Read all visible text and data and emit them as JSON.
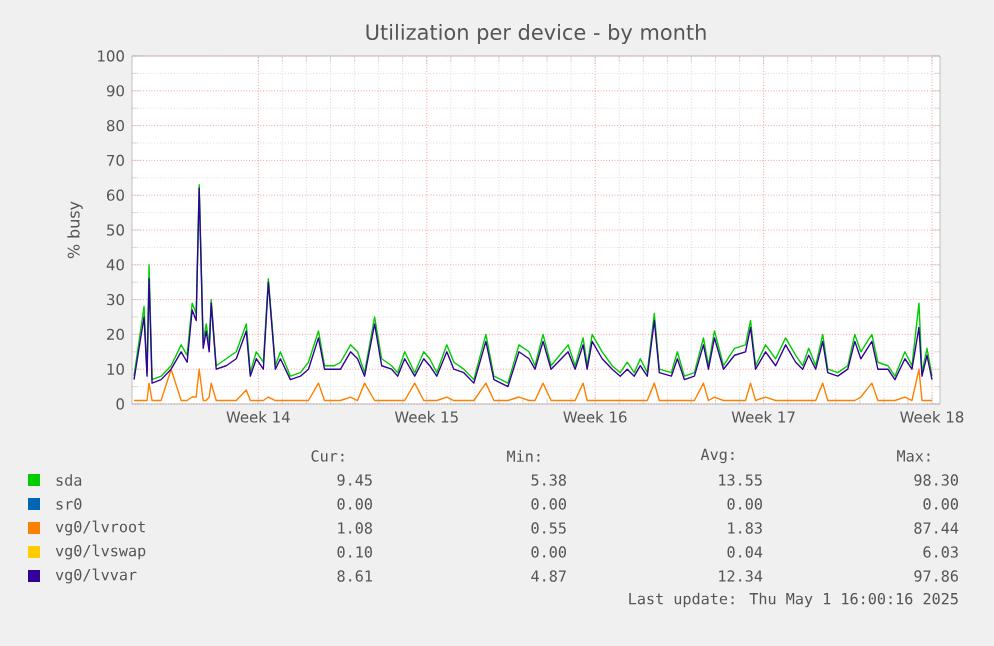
{
  "chart_data": {
    "type": "line",
    "title": "Utilization per device - by month",
    "ylabel": "% busy",
    "x": [
      "2025-03-25T20:00",
      "2025-03-26T06:00",
      "2025-03-26T09:00",
      "2025-03-26T11:00",
      "2025-03-26T14:00",
      "2025-03-26T23:00",
      "2025-03-27T09:00",
      "2025-03-27T19:00",
      "2025-03-28T01:00",
      "2025-03-28T06:00",
      "2025-03-28T10:00",
      "2025-03-28T13:00",
      "2025-03-28T17:00",
      "2025-03-28T20:00",
      "2025-03-28T23:00",
      "2025-03-29T01:00",
      "2025-03-29T06:00",
      "2025-03-29T16:00",
      "2025-03-30T02:00",
      "2025-03-30T12:00",
      "2025-03-30T16:00",
      "2025-03-30T22:00",
      "2025-03-31T05:00",
      "2025-03-31T10:00",
      "2025-03-31T17:00",
      "2025-03-31T22:00",
      "2025-04-01T08:00",
      "2025-04-01T18:00",
      "2025-04-02T02:00",
      "2025-04-02T12:00",
      "2025-04-02T18:00",
      "2025-04-03T04:00",
      "2025-04-03T10:00",
      "2025-04-03T20:00",
      "2025-04-04T03:00",
      "2025-04-04T10:00",
      "2025-04-04T20:00",
      "2025-04-05T03:00",
      "2025-04-05T13:00",
      "2025-04-05T19:00",
      "2025-04-06T02:00",
      "2025-04-06T12:00",
      "2025-04-06T21:00",
      "2025-04-07T03:00",
      "2025-04-07T10:00",
      "2025-04-07T20:00",
      "2025-04-08T03:00",
      "2025-04-08T13:00",
      "2025-04-08T23:00",
      "2025-04-09T11:00",
      "2025-04-09T19:00",
      "2025-04-10T09:00",
      "2025-04-10T20:00",
      "2025-04-11T06:00",
      "2025-04-11T12:00",
      "2025-04-11T20:00",
      "2025-04-12T04:00",
      "2025-04-12T21:00",
      "2025-04-13T04:00",
      "2025-04-13T12:00",
      "2025-04-13T16:00",
      "2025-04-13T21:00",
      "2025-04-14T07:00",
      "2025-04-14T17:00",
      "2025-04-15T01:00",
      "2025-04-15T08:00",
      "2025-04-15T15:00",
      "2025-04-15T21:00",
      "2025-04-16T04:00",
      "2025-04-16T11:00",
      "2025-04-16T16:00",
      "2025-04-17T04:00",
      "2025-04-17T10:00",
      "2025-04-17T17:00",
      "2025-04-18T03:00",
      "2025-04-18T12:00",
      "2025-04-18T17:00",
      "2025-04-18T23:00",
      "2025-04-19T08:00",
      "2025-04-19T19:00",
      "2025-04-20T06:00",
      "2025-04-20T11:00",
      "2025-04-20T16:00",
      "2025-04-21T02:00",
      "2025-04-21T12:00",
      "2025-04-21T22:00",
      "2025-04-22T08:00",
      "2025-04-22T15:00",
      "2025-04-22T21:00",
      "2025-04-23T04:00",
      "2025-04-23T11:00",
      "2025-04-23T16:00",
      "2025-04-24T02:00",
      "2025-04-24T12:00",
      "2025-04-24T19:00",
      "2025-04-25T01:00",
      "2025-04-25T12:00",
      "2025-04-25T18:00",
      "2025-04-26T04:00",
      "2025-04-26T11:00",
      "2025-04-26T21:00",
      "2025-04-27T04:00",
      "2025-04-27T11:00",
      "2025-04-27T14:00",
      "2025-04-27T19:00",
      "2025-04-28T00:00"
    ],
    "series": [
      {
        "name": "sda",
        "color": "#00cc00",
        "values": [
          8,
          28,
          9,
          40,
          7,
          8,
          11,
          17,
          14,
          29,
          26,
          63,
          18,
          23,
          17,
          30,
          11,
          13,
          15,
          23,
          9,
          15,
          12,
          36,
          11,
          15,
          8,
          9,
          12,
          21,
          11,
          11,
          12,
          17,
          15,
          9,
          25,
          13,
          11,
          9,
          15,
          9,
          15,
          13,
          9,
          17,
          12,
          10,
          7,
          20,
          8,
          6,
          17,
          15,
          11,
          20,
          11,
          17,
          11,
          19,
          11,
          20,
          15,
          11,
          9,
          12,
          9,
          13,
          9,
          26,
          10,
          9,
          15,
          8,
          9,
          19,
          11,
          21,
          11,
          16,
          17,
          24,
          11,
          17,
          13,
          19,
          14,
          11,
          16,
          11,
          20,
          10,
          9,
          11,
          20,
          15,
          20,
          12,
          11,
          8,
          15,
          11,
          29,
          9,
          16,
          8
        ]
      },
      {
        "name": "sr0",
        "color": "#0066b3",
        "values": [
          null,
          null,
          null,
          null,
          null,
          null,
          null,
          null,
          null,
          null,
          null,
          null,
          null,
          null,
          null,
          null,
          null,
          null,
          null,
          null,
          null,
          null,
          null,
          null,
          null,
          null,
          null,
          null,
          null,
          null,
          null,
          null,
          null,
          null,
          null,
          null,
          null,
          null,
          null,
          null,
          null,
          null,
          null,
          null,
          null,
          null,
          null,
          null,
          null,
          null,
          null,
          null,
          null,
          null,
          null,
          null,
          null,
          null,
          null,
          null,
          null,
          null,
          null,
          null,
          null,
          null,
          null,
          null,
          null,
          null,
          null,
          null,
          null,
          null,
          null,
          null,
          null,
          null,
          null,
          null,
          null,
          null,
          null,
          null,
          null,
          null,
          null,
          null,
          null,
          null,
          null,
          null,
          null,
          null,
          null,
          null,
          null,
          null,
          null,
          null,
          null,
          null,
          null,
          null,
          null,
          null
        ]
      },
      {
        "name": "vg0/lvroot",
        "color": "#ff8000",
        "values": [
          1,
          1,
          1,
          6,
          1,
          1,
          10,
          1,
          1,
          2,
          2,
          10,
          1,
          1,
          2,
          6,
          1,
          1,
          1,
          4,
          1,
          1,
          1,
          2,
          1,
          1,
          1,
          1,
          1,
          6,
          1,
          1,
          1,
          2,
          1,
          6,
          1,
          1,
          1,
          1,
          1,
          6,
          1,
          1,
          1,
          2,
          1,
          1,
          1,
          6,
          1,
          1,
          2,
          1,
          1,
          6,
          1,
          1,
          1,
          6,
          1,
          1,
          1,
          1,
          1,
          1,
          1,
          1,
          1,
          6,
          1,
          1,
          1,
          1,
          1,
          6,
          1,
          2,
          1,
          1,
          1,
          6,
          1,
          2,
          1,
          1,
          1,
          1,
          1,
          1,
          6,
          1,
          1,
          1,
          1,
          2,
          6,
          1,
          1,
          1,
          2,
          1,
          10,
          1,
          1,
          1
        ]
      },
      {
        "name": "vg0/lvswap",
        "color": "#ffcc00",
        "values": [
          null,
          null,
          null,
          null,
          null,
          null,
          null,
          null,
          null,
          null,
          null,
          null,
          null,
          null,
          null,
          null,
          null,
          null,
          null,
          null,
          null,
          null,
          null,
          null,
          null,
          null,
          null,
          null,
          null,
          null,
          null,
          null,
          null,
          null,
          null,
          null,
          null,
          null,
          null,
          null,
          null,
          null,
          null,
          null,
          null,
          null,
          null,
          null,
          null,
          null,
          null,
          null,
          null,
          null,
          null,
          null,
          null,
          null,
          null,
          null,
          null,
          null,
          null,
          null,
          null,
          null,
          null,
          null,
          null,
          null,
          null,
          null,
          null,
          null,
          null,
          null,
          null,
          null,
          null,
          null,
          null,
          null,
          null,
          null,
          null,
          null,
          null,
          null,
          null,
          null,
          null,
          null,
          null,
          null,
          null,
          null,
          null,
          null,
          null,
          null,
          null,
          null,
          null,
          null,
          null,
          null
        ]
      },
      {
        "name": "vg0/lvvar",
        "color": "#330099",
        "values": [
          7,
          25,
          8,
          36,
          6,
          7,
          10,
          15,
          12,
          27,
          24,
          62,
          16,
          21,
          15,
          29,
          10,
          11,
          13,
          21,
          8,
          13,
          10,
          35,
          10,
          13,
          7,
          8,
          10,
          19,
          10,
          10,
          10,
          15,
          13,
          8,
          23,
          11,
          10,
          8,
          13,
          8,
          13,
          11,
          8,
          15,
          10,
          9,
          6,
          18,
          7,
          5,
          15,
          13,
          10,
          18,
          10,
          15,
          10,
          17,
          10,
          18,
          13,
          10,
          8,
          10,
          8,
          11,
          8,
          24,
          9,
          8,
          13,
          7,
          8,
          17,
          10,
          19,
          10,
          14,
          15,
          22,
          10,
          15,
          11,
          17,
          12,
          10,
          14,
          10,
          18,
          9,
          8,
          10,
          18,
          13,
          18,
          10,
          10,
          7,
          13,
          10,
          22,
          8,
          14,
          7
        ]
      }
    ],
    "xlim": [
      "2025-03-25T18:00",
      "2025-04-28T08:00"
    ],
    "ylim": [
      0,
      100
    ],
    "xticks": [
      {
        "value": "2025-03-31",
        "label": "Week 14"
      },
      {
        "value": "2025-04-07",
        "label": "Week 15"
      },
      {
        "value": "2025-04-14",
        "label": "Week 16"
      },
      {
        "value": "2025-04-21",
        "label": "Week 17"
      },
      {
        "value": "2025-04-28",
        "label": "Week 18"
      }
    ],
    "yticks": [
      0,
      10,
      20,
      30,
      40,
      50,
      60,
      70,
      80,
      90,
      100
    ],
    "grid": true,
    "legend": "bottom",
    "annotations": [
      "Cur:",
      "Min:",
      "Avg:",
      "Max:",
      "9.45",
      "5.38",
      "13.55",
      "98.30",
      "0.00",
      "0.00",
      "0.00",
      "0.00",
      "1.08",
      "0.55",
      "1.83",
      "87.44",
      "0.10",
      "0.00",
      "0.04",
      "6.03",
      "8.61",
      "4.87",
      "12.34",
      "97.86",
      "Last update: Thu May  1 16:00:16 2025"
    ]
  }
}
